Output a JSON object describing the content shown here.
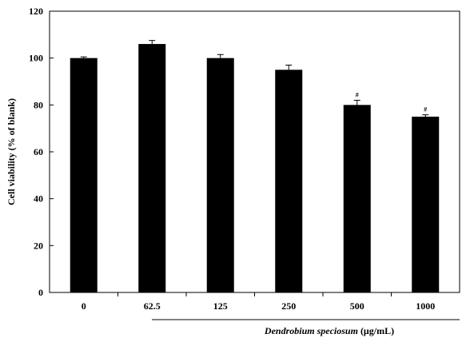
{
  "chart_data": {
    "type": "bar",
    "categories": [
      "0",
      "62.5",
      "125",
      "250",
      "500",
      "1000"
    ],
    "values": [
      100,
      106,
      100,
      95,
      80,
      75
    ],
    "errors": [
      0.5,
      1.5,
      1.5,
      2,
      2,
      0.8
    ],
    "annotations": [
      "",
      "",
      "",
      "",
      "#",
      "#"
    ],
    "ylabel": "Cell viability  (% of blank)",
    "xlabel_italic": "Dendrobium speciosum",
    "xlabel_unit": " (μg/mL)",
    "ylim": [
      0,
      120
    ],
    "yticks": [
      0,
      20,
      40,
      60,
      80,
      100,
      120
    ],
    "bar_color": "#000000",
    "grid": false,
    "legend": "none"
  }
}
